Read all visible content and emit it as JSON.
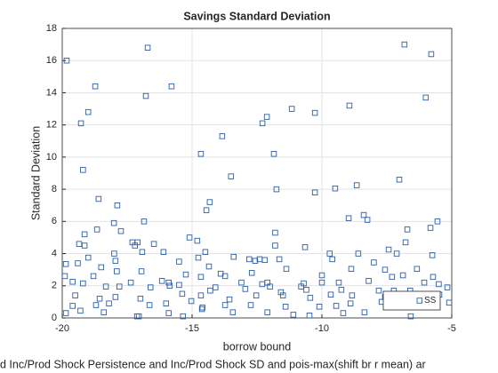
{
  "chart_data": {
    "type": "scatter",
    "title": "Savings Standard Deviation",
    "xlabel": "borrow bound",
    "ylabel": "Standard Deviation",
    "footnote": "d Inc/Prod Shock Persistence and Inc/Prod Shock SD and pois-max(shift br r mean) ar",
    "xlim": [
      -20,
      -5
    ],
    "xticks": [
      -20,
      -15,
      -10,
      -5
    ],
    "ylim": [
      0,
      18
    ],
    "yticks": [
      0,
      2,
      4,
      6,
      8,
      10,
      12,
      14,
      16,
      18
    ],
    "grid": true,
    "legend": "southeast",
    "series": [
      {
        "name": "SS",
        "color": "#2a5ea8",
        "x": [
          -19.83,
          -16.71,
          -18.73,
          -15.79,
          -19.0,
          -19.28,
          -16.78,
          -11.16,
          -10.27,
          -8.94,
          -6.82,
          -5.79,
          -6.0,
          -12.29,
          -12.12,
          -13.84,
          -14.66,
          -11.85,
          -19.2,
          -13.5,
          -18.6,
          -11.75,
          -10.27,
          -9.49,
          -8.66,
          -17.88,
          -7.02,
          -14.45,
          -14.32,
          -16.85,
          -19.14,
          -18.66,
          -18.01,
          -8.39,
          -8.25,
          -8.97,
          -5.55,
          -5.82,
          -6.71,
          -15.1,
          -14.8,
          -11.8,
          -17.74,
          -17.3,
          -17.1,
          -17.2,
          -19.35,
          -19.14,
          -16.47,
          -11.8,
          -10.65,
          -6.78,
          -7.43,
          -7.12,
          -14.49,
          -19.0,
          -18.0,
          -16.92,
          -16.1,
          -13.4,
          -12.8,
          -12.4,
          -12.2,
          -9.7,
          -8.6,
          -5.75,
          -19.86,
          -19.4,
          -17.95,
          -15.5,
          -14.76,
          -14.35,
          -12.57,
          -11.64,
          -9.6,
          -8.0,
          -18.5,
          -17.9,
          -16.95,
          -13.9,
          -12.7,
          -11.37,
          -8.87,
          -7.57,
          -6.34,
          -19.9,
          -18.8,
          -15.24,
          -14.66,
          -13.73,
          -10.0,
          -7.3,
          -6.88,
          -5.72,
          -19.6,
          -19.2,
          -17.36,
          -16.16,
          -15.9,
          -15.5,
          -13.1,
          -12.3,
          -12.1,
          -10.7,
          -10.0,
          -9.35,
          -8.2,
          -6.06,
          -5.5,
          -18.32,
          -17.8,
          -16.6,
          -15.86,
          -14.3,
          -14.1,
          -12.95,
          -12.0,
          -11.58,
          -10.8,
          -10.6,
          -9.25,
          -7.81,
          -7.23,
          -6.6,
          -5.17,
          -19.5,
          -18.56,
          -17.95,
          -16.99,
          -15.38,
          -14.66,
          -13.56,
          -12.53,
          -11.5,
          -10.45,
          -9.66,
          -8.84,
          -7.57,
          -6.34,
          -5.48,
          -19.6,
          -18.7,
          -18.2,
          -16.64,
          -16.0,
          -15.03,
          -13.73,
          -12.74,
          -11.4,
          -10.1,
          -9.45,
          -8.9,
          -7.7,
          -5.1,
          -19.3,
          -18.4,
          -17.12,
          -17.05,
          -15.9,
          -15.35,
          -14.62,
          -13.43,
          -12.1,
          -11.1,
          -10.48,
          -9.18,
          -8.36,
          -6.58,
          -19.86,
          -14.6
        ],
        "values": [
          16.0,
          16.8,
          14.4,
          14.4,
          12.8,
          12.1,
          13.8,
          13.0,
          12.75,
          13.2,
          17.0,
          16.4,
          13.7,
          12.1,
          12.5,
          11.3,
          10.2,
          10.2,
          9.2,
          8.8,
          7.4,
          8.0,
          7.8,
          8.05,
          8.25,
          7.0,
          8.6,
          6.7,
          7.2,
          6.0,
          5.2,
          5.5,
          5.9,
          6.4,
          6.1,
          6.2,
          6.0,
          5.6,
          5.5,
          5.0,
          4.8,
          5.3,
          5.4,
          4.7,
          4.7,
          4.5,
          4.6,
          4.5,
          4.6,
          4.5,
          4.4,
          4.7,
          4.25,
          4.0,
          4.1,
          3.75,
          4.0,
          4.1,
          4.1,
          3.8,
          3.65,
          3.65,
          3.6,
          4.0,
          4.0,
          3.9,
          3.35,
          3.4,
          3.55,
          3.5,
          3.75,
          3.2,
          3.55,
          3.65,
          3.65,
          3.45,
          3.15,
          2.9,
          2.9,
          2.75,
          2.8,
          3.05,
          3.05,
          3.0,
          3.05,
          2.6,
          2.6,
          2.7,
          2.55,
          2.6,
          2.65,
          2.55,
          2.65,
          2.55,
          2.25,
          2.15,
          2.2,
          2.3,
          2.2,
          2.05,
          2.2,
          2.1,
          2.2,
          2.15,
          2.2,
          2.2,
          2.3,
          2.2,
          2.1,
          1.95,
          1.95,
          1.9,
          2.0,
          1.7,
          1.9,
          1.8,
          1.95,
          1.6,
          1.95,
          1.75,
          1.75,
          1.7,
          1.7,
          1.7,
          1.9,
          1.4,
          1.2,
          1.3,
          1.2,
          1.5,
          1.4,
          1.15,
          1.4,
          1.4,
          1.25,
          1.45,
          1.4,
          1.3,
          1.3,
          1.45,
          0.75,
          0.8,
          0.9,
          0.8,
          0.9,
          1.05,
          0.8,
          0.8,
          0.7,
          0.7,
          0.75,
          0.9,
          1.0,
          0.95,
          0.45,
          0.35,
          0.1,
          0.1,
          0.3,
          0.1,
          0.55,
          0.35,
          0.35,
          0.2,
          0.15,
          0.3,
          0.35,
          0.1,
          0.3,
          0.65
        ]
      }
    ]
  }
}
